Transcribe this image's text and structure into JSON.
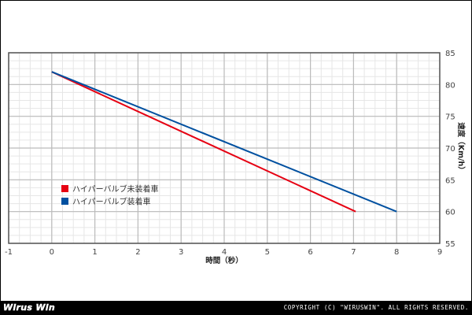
{
  "chart_data": {
    "type": "line",
    "title": "",
    "xlabel": "時間（秒）",
    "ylabel": "速度（Km/h）",
    "xlim": [
      -1,
      9
    ],
    "ylim": [
      55,
      85
    ],
    "x_ticks": [
      "-1",
      "0",
      "1",
      "2",
      "3",
      "4",
      "5",
      "6",
      "7",
      "8",
      "9"
    ],
    "y_ticks": [
      "55",
      "60",
      "65",
      "70",
      "75",
      "80",
      "85"
    ],
    "y_axis_position": "right",
    "grid": true,
    "legend_position": "inside-left-lower",
    "series": [
      {
        "name": "ハイパーバルブ未装着車",
        "color": "#e60012",
        "x": [
          0,
          7.05
        ],
        "y": [
          82,
          60
        ]
      },
      {
        "name": "ハイパーバルブ装着車",
        "color": "#0050a0",
        "x": [
          0,
          8
        ],
        "y": [
          82,
          60
        ]
      }
    ]
  },
  "footer": {
    "logo": "Wirus Win",
    "copyright": "COPYRIGHT (C) \"WIRUSWIN\". ALL RIGHTS RESERVED."
  }
}
